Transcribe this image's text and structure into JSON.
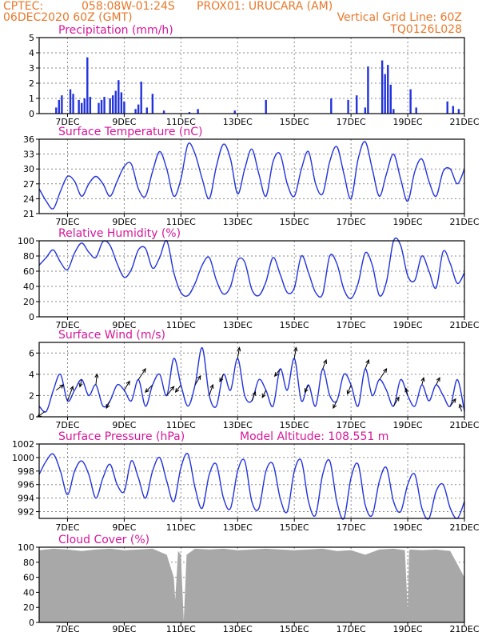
{
  "header": {
    "line1_left": "CPTEC:",
    "line1_coords": "058:08W-01:24S",
    "line1_station": "PROX01: URUCARA (AM)",
    "line2_left": "06DEC2020 60Z (GMT)",
    "line2_right": "Vertical Grid Line: 60Z",
    "line3_right": "TQ0126L028"
  },
  "x_ticks": [
    "7DEC",
    "9DEC",
    "11DEC",
    "13DEC",
    "15DEC",
    "17DEC",
    "19DEC",
    "21DEC"
  ],
  "colors": {
    "header": "#e8782a",
    "title": "#d6169a",
    "series": "#2233dd",
    "cloud": "#a8a8a8"
  },
  "chart_data": [
    {
      "id": "precip",
      "type": "bar",
      "title": "Precipitation (mm/h)",
      "ylim": [
        0,
        5
      ],
      "yticks": [
        "0",
        "1",
        "2",
        "3",
        "4",
        "5"
      ],
      "x": [
        6.6,
        6.7,
        6.8,
        7.1,
        7.2,
        7.4,
        7.5,
        7.6,
        7.7,
        7.8,
        8.1,
        8.2,
        8.3,
        8.5,
        8.6,
        8.7,
        8.8,
        8.9,
        9.0,
        9.4,
        9.5,
        9.6,
        9.8,
        10.0,
        10.4,
        11.3,
        11.6,
        12.9,
        14.0,
        16.3,
        16.9,
        17.2,
        17.5,
        17.6,
        18.1,
        18.2,
        18.3,
        18.4,
        18.5,
        19.1,
        19.3,
        20.4,
        20.6,
        20.8
      ],
      "values": [
        0.4,
        0.9,
        1.2,
        1.6,
        1.3,
        0.9,
        0.7,
        1.0,
        3.7,
        1.1,
        0.7,
        0.9,
        1.1,
        1.0,
        1.2,
        1.5,
        2.2,
        1.4,
        0.8,
        0.3,
        0.6,
        2.1,
        0.4,
        1.3,
        0.2,
        0.1,
        0.3,
        0.2,
        0.9,
        1.0,
        0.9,
        1.2,
        0.4,
        3.1,
        3.5,
        2.6,
        3.2,
        1.9,
        0.3,
        1.6,
        0.4,
        0.8,
        0.5,
        0.3
      ]
    },
    {
      "id": "temp",
      "type": "line",
      "title": "Surface Temperature (nC)",
      "ylim": [
        21,
        36
      ],
      "yticks": [
        "21",
        "24",
        "27",
        "30",
        "33",
        "36"
      ],
      "x": [
        6,
        6.25,
        6.5,
        6.75,
        7,
        7.25,
        7.5,
        7.75,
        8,
        8.25,
        8.5,
        8.75,
        9,
        9.25,
        9.5,
        9.75,
        10,
        10.25,
        10.5,
        10.75,
        11,
        11.25,
        11.5,
        11.75,
        12,
        12.25,
        12.5,
        12.75,
        13,
        13.25,
        13.5,
        13.75,
        14,
        14.25,
        14.5,
        14.75,
        15,
        15.25,
        15.5,
        15.75,
        16,
        16.25,
        16.5,
        16.75,
        17,
        17.25,
        17.5,
        17.75,
        18,
        18.25,
        18.5,
        18.75,
        19,
        19.25,
        19.5,
        19.75,
        20,
        20.25,
        20.5,
        20.75,
        21
      ],
      "values": [
        26,
        23.5,
        22,
        25.5,
        28.5,
        27.5,
        24.5,
        27,
        28.5,
        27,
        24.5,
        27.5,
        30.5,
        31,
        26,
        24.5,
        29.5,
        33.5,
        30,
        24.5,
        28,
        35,
        33,
        28,
        24,
        30.5,
        35,
        32,
        25,
        30,
        34,
        29,
        24.5,
        31.5,
        33,
        27,
        24.5,
        30,
        33.5,
        27,
        25,
        31.5,
        34.5,
        29,
        24,
        32,
        35.5,
        30,
        24.5,
        29,
        33,
        28,
        23.5,
        29.5,
        32,
        27.5,
        24.5,
        29.5,
        30,
        27,
        30
      ]
    },
    {
      "id": "rh",
      "type": "line",
      "title": "Relative Humidity (%)",
      "ylim": [
        0,
        100
      ],
      "yticks": [
        "0",
        "20",
        "40",
        "60",
        "80",
        "100"
      ],
      "x": [
        6,
        6.25,
        6.5,
        6.75,
        7,
        7.25,
        7.5,
        7.75,
        8,
        8.25,
        8.5,
        8.75,
        9,
        9.25,
        9.5,
        9.75,
        10,
        10.25,
        10.5,
        10.75,
        11,
        11.25,
        11.5,
        11.75,
        12,
        12.25,
        12.5,
        12.75,
        13,
        13.25,
        13.5,
        13.75,
        14,
        14.25,
        14.5,
        14.75,
        15,
        15.25,
        15.5,
        15.75,
        16,
        16.25,
        16.5,
        16.75,
        17,
        17.25,
        17.5,
        17.75,
        18,
        18.25,
        18.5,
        18.75,
        19,
        19.25,
        19.5,
        19.75,
        20,
        20.25,
        20.5,
        20.75,
        21
      ],
      "values": [
        68,
        78,
        88,
        72,
        62,
        84,
        97,
        85,
        78,
        99,
        94,
        70,
        52,
        62,
        88,
        90,
        64,
        78,
        100,
        58,
        32,
        28,
        44,
        68,
        78,
        48,
        30,
        40,
        74,
        72,
        36,
        28,
        46,
        78,
        56,
        32,
        38,
        80,
        58,
        32,
        30,
        80,
        70,
        36,
        24,
        44,
        84,
        68,
        28,
        46,
        100,
        94,
        54,
        48,
        80,
        60,
        38,
        86,
        70,
        44,
        58
      ]
    },
    {
      "id": "wind",
      "type": "line",
      "title": "Surface Wind (m/s)",
      "ylim": [
        0,
        7
      ],
      "yticks": [
        "0",
        "2",
        "4",
        "6"
      ],
      "x": [
        6,
        6.25,
        6.5,
        6.75,
        7,
        7.25,
        7.5,
        7.75,
        8,
        8.25,
        8.5,
        8.75,
        9,
        9.25,
        9.5,
        9.75,
        10,
        10.25,
        10.5,
        10.75,
        11,
        11.25,
        11.5,
        11.75,
        12,
        12.25,
        12.5,
        12.75,
        13,
        13.25,
        13.5,
        13.75,
        14,
        14.25,
        14.5,
        14.75,
        15,
        15.25,
        15.5,
        15.75,
        16,
        16.25,
        16.5,
        16.75,
        17,
        17.25,
        17.5,
        17.75,
        18,
        18.25,
        18.5,
        18.75,
        19,
        19.25,
        19.5,
        19.75,
        20,
        20.25,
        20.5,
        20.75,
        21
      ],
      "values": [
        1,
        0.5,
        2.5,
        4,
        1.5,
        2.5,
        3.5,
        2,
        3,
        1,
        1.5,
        3,
        2.5,
        1.5,
        3.5,
        1,
        3,
        4,
        2,
        5.5,
        3,
        1,
        3,
        6.5,
        2,
        1,
        4,
        2.5,
        5.5,
        2,
        1.5,
        3.5,
        2.5,
        1,
        4.5,
        2.5,
        5.5,
        1.5,
        3,
        1,
        4.5,
        2,
        1.5,
        4,
        3,
        1,
        4.5,
        2,
        3.5,
        2.5,
        1,
        3.5,
        2,
        1,
        3,
        1.5,
        3,
        2,
        1,
        3.5,
        0.5
      ],
      "arrows": {
        "x": [
          6.2,
          6.6,
          7.0,
          7.5,
          8.0,
          8.5,
          9.0,
          9.5,
          10.0,
          10.5,
          11.0,
          11.5,
          12.0,
          12.5,
          13.0,
          13.5,
          14.0,
          14.5,
          15.0,
          15.5,
          16.0,
          16.5,
          17.0,
          17.5,
          18.0,
          18.5,
          19.0,
          19.5,
          20.0,
          20.5,
          20.9
        ],
        "u": [
          -2,
          2,
          1.5,
          -0.5,
          0.3,
          -1,
          1.5,
          2,
          -2,
          2,
          -1.5,
          1.5,
          1,
          -1,
          0.5,
          1,
          -1,
          -1.5,
          0.5,
          -1,
          1,
          -1,
          -1,
          1,
          2,
          1.5,
          -0.5,
          0.5,
          1,
          1.5,
          -0.5
        ],
        "v": [
          -1.5,
          1.5,
          4,
          -2,
          3,
          -2,
          2.5,
          3,
          -2,
          2.5,
          -2,
          2.5,
          3,
          -2,
          3,
          2.5,
          -2,
          -2,
          3,
          -2,
          2.5,
          -2,
          -2.5,
          2.5,
          3,
          2.5,
          2,
          2,
          2,
          2,
          2
        ]
      }
    },
    {
      "id": "press",
      "type": "line",
      "title": "Surface Pressure (hPa)",
      "annotation": "Model Altitude: 108.551 m",
      "ylim": [
        991,
        1002
      ],
      "yticks": [
        "992",
        "994",
        "996",
        "998",
        "1000",
        "1002"
      ],
      "x": [
        6,
        6.25,
        6.5,
        6.75,
        7,
        7.25,
        7.5,
        7.75,
        8,
        8.25,
        8.5,
        8.75,
        9,
        9.25,
        9.5,
        9.75,
        10,
        10.25,
        10.5,
        10.75,
        11,
        11.25,
        11.5,
        11.75,
        12,
        12.25,
        12.5,
        12.75,
        13,
        13.25,
        13.5,
        13.75,
        14,
        14.25,
        14.5,
        14.75,
        15,
        15.25,
        15.5,
        15.75,
        16,
        16.25,
        16.5,
        16.75,
        17,
        17.25,
        17.5,
        17.75,
        18,
        18.25,
        18.5,
        18.75,
        19,
        19.25,
        19.5,
        19.75,
        20,
        20.25,
        20.5,
        20.75,
        21
      ],
      "values": [
        997.5,
        999.5,
        1000.5,
        998,
        994.5,
        998,
        999.5,
        997.5,
        994,
        997,
        999,
        996,
        995,
        999.5,
        997,
        994,
        998,
        1000,
        996.5,
        993.5,
        998.5,
        1000.5,
        995.5,
        992.5,
        997.5,
        999,
        994,
        992.5,
        998,
        999.5,
        993.5,
        992.5,
        998,
        999,
        994,
        992,
        998,
        999.5,
        993.5,
        991.5,
        997.5,
        999.5,
        993.5,
        991,
        997,
        999,
        993,
        991.5,
        996.5,
        998.5,
        993.5,
        992,
        996,
        997.5,
        992.5,
        991,
        995,
        996,
        992.5,
        991,
        993.5
      ]
    },
    {
      "id": "cloud",
      "type": "area",
      "title": "Cloud Cover (%)",
      "ylim": [
        0,
        100
      ],
      "yticks": [
        "0",
        "20",
        "40",
        "60",
        "80",
        "100"
      ],
      "x": [
        6,
        6.5,
        7,
        7.5,
        8,
        8.5,
        9,
        9.5,
        10,
        10.5,
        10.75,
        10.8,
        10.9,
        11.0,
        11.1,
        11.2,
        11.5,
        12,
        12.5,
        13,
        13.5,
        14,
        14.5,
        15,
        15.5,
        16,
        16.5,
        17,
        17.5,
        18,
        18.5,
        18.9,
        19.0,
        19.05,
        19.1,
        19.5,
        20,
        20.5,
        21
      ],
      "values": [
        96,
        98,
        97,
        95,
        97,
        98,
        96,
        97,
        98,
        90,
        60,
        30,
        95,
        90,
        2,
        90,
        98,
        97,
        98,
        96,
        97,
        98,
        97,
        96,
        97,
        98,
        95,
        96,
        90,
        97,
        98,
        96,
        15,
        96,
        97,
        96,
        97,
        95,
        60
      ]
    }
  ]
}
